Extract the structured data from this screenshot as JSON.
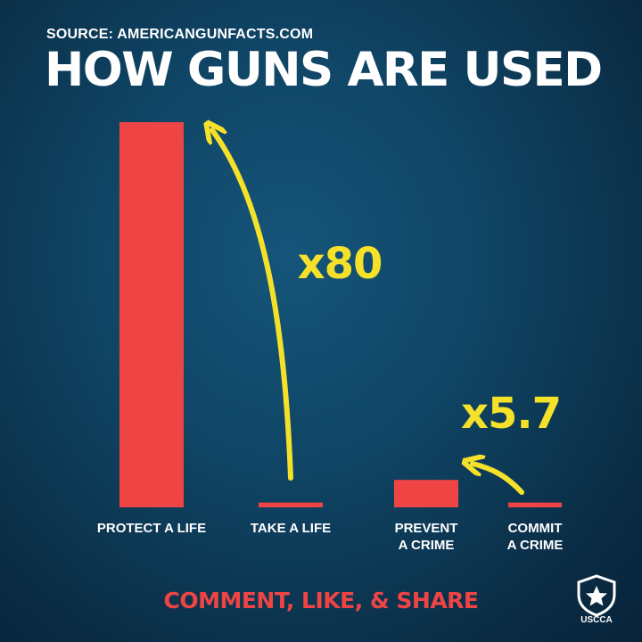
{
  "header": {
    "source": "SOURCE: AMERICANGUNFACTS.COM",
    "title": "HOW GUNS ARE USED"
  },
  "chart_data": {
    "type": "bar",
    "title": "HOW GUNS ARE USED",
    "categories": [
      [
        "PROTECT A LIFE"
      ],
      [
        "TAKE A LIFE"
      ],
      [
        "PREVENT",
        "A CRIME"
      ],
      [
        "COMMIT",
        "A CRIME"
      ]
    ],
    "values": [
      80,
      1,
      5.7,
      1
    ],
    "bar_color": "#ef4444",
    "annotations": [
      {
        "text": "x80",
        "from_category": 1,
        "to_category": 0,
        "color": "#f5e12a"
      },
      {
        "text": "x5.7",
        "from_category": 3,
        "to_category": 2,
        "color": "#f5e12a"
      }
    ],
    "ylim": [
      0,
      80
    ],
    "grid": false,
    "legend": "none"
  },
  "footer": {
    "cta": "COMMENT, LIKE, & SHARE",
    "cta_color": "#ef4444",
    "logo_text": "USCCA"
  }
}
